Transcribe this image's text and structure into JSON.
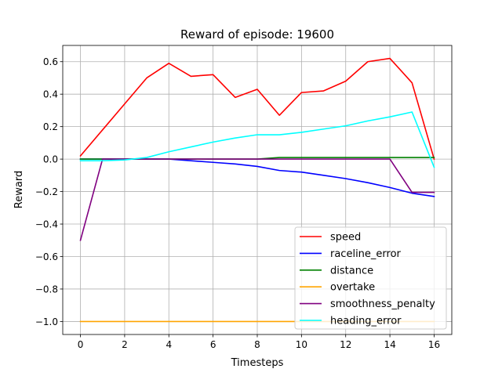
{
  "chart_data": {
    "type": "line",
    "title": "Reward of episode: 19600",
    "xlabel": "Timesteps",
    "ylabel": "Reward",
    "xlim": [
      -0.8,
      16.8
    ],
    "ylim": [
      -1.08,
      0.7
    ],
    "xticks": [
      0,
      2,
      4,
      6,
      8,
      10,
      12,
      14,
      16
    ],
    "yticks": [
      -1.0,
      -0.8,
      -0.6,
      -0.4,
      -0.2,
      0.0,
      0.2,
      0.4,
      0.6
    ],
    "ytick_labels": [
      "−1.0",
      "−0.8",
      "−0.6",
      "−0.4",
      "−0.2",
      "0.0",
      "0.2",
      "0.4",
      "0.6"
    ],
    "grid": true,
    "legend_position": "lower-right",
    "x": [
      0,
      1,
      2,
      3,
      4,
      5,
      6,
      7,
      8,
      9,
      10,
      11,
      12,
      13,
      14,
      15,
      16
    ],
    "series": [
      {
        "name": "speed",
        "color": "#ff0000",
        "values": [
          0.02,
          0.18,
          0.34,
          0.5,
          0.59,
          0.51,
          0.52,
          0.38,
          0.43,
          0.27,
          0.41,
          0.42,
          0.48,
          0.6,
          0.62,
          0.47,
          0.0
        ]
      },
      {
        "name": "raceline_error",
        "color": "#0000ff",
        "values": [
          0.0,
          0.0,
          0.0,
          0.0,
          0.0,
          -0.01,
          -0.02,
          -0.03,
          -0.045,
          -0.07,
          -0.08,
          -0.1,
          -0.12,
          -0.145,
          -0.175,
          -0.21,
          -0.23
        ]
      },
      {
        "name": "distance",
        "color": "#008000",
        "values": [
          0.0,
          0.0,
          0.0,
          0.0,
          0.0,
          0.0,
          0.0,
          0.0,
          0.0,
          0.01,
          0.01,
          0.01,
          0.01,
          0.01,
          0.01,
          0.01,
          0.01
        ]
      },
      {
        "name": "overtake",
        "color": "#ffa500",
        "values": [
          -1.0,
          -1.0,
          -1.0,
          -1.0,
          -1.0,
          -1.0,
          -1.0,
          -1.0,
          -1.0,
          -1.0,
          -1.0,
          -1.0,
          -1.0,
          -1.0,
          -1.0,
          -1.0,
          -1.0
        ]
      },
      {
        "name": "smoothness_penalty",
        "color": "#800080",
        "values": [
          -0.5,
          0.0,
          0.0,
          0.0,
          0.0,
          0.0,
          0.0,
          0.0,
          0.0,
          0.0,
          0.0,
          0.0,
          0.0,
          0.0,
          0.0,
          -0.205,
          -0.205
        ]
      },
      {
        "name": "heading_error",
        "color": "#00ffff",
        "values": [
          -0.01,
          -0.01,
          -0.005,
          0.01,
          0.045,
          0.075,
          0.105,
          0.13,
          0.15,
          0.15,
          0.165,
          0.185,
          0.205,
          0.235,
          0.26,
          0.29,
          -0.05
        ]
      }
    ]
  }
}
